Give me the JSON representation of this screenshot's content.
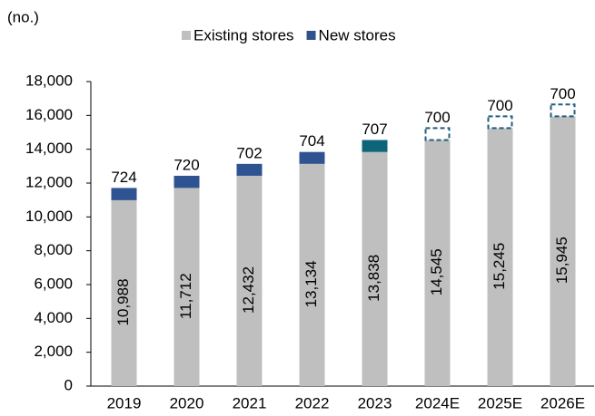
{
  "chart_data": {
    "type": "stacked_bar",
    "y_label": "(no.)",
    "categories": [
      "2019",
      "2020",
      "2021",
      "2022",
      "2023",
      "2024E",
      "2025E",
      "2026E"
    ],
    "series": [
      {
        "name": "Existing stores",
        "color": "#bfbfbf",
        "values": [
          10988,
          11712,
          12432,
          13134,
          13838,
          14545,
          15245,
          15945
        ],
        "value_labels": [
          "10,988",
          "11,712",
          "12,432",
          "13,134",
          "13,838",
          "14,545",
          "15,245",
          "15,945"
        ]
      },
      {
        "name": "New stores",
        "color": "#2f5391",
        "colors": [
          "#2f5391",
          "#2f5391",
          "#2f5391",
          "#2f5391",
          "#0e6478",
          "#1f5f7a",
          "#1f5f7a",
          "#1f5f7a"
        ],
        "dashed": [
          false,
          false,
          false,
          false,
          false,
          true,
          true,
          true
        ],
        "values": [
          724,
          720,
          702,
          704,
          707,
          700,
          700,
          700
        ]
      }
    ],
    "ylim": [
      0,
      18000
    ],
    "yticks": [
      0,
      {
        "value": 2000,
        "label": "2,000"
      },
      {
        "value": 4000,
        "label": "4,000"
      },
      {
        "value": 6000,
        "label": "6,000"
      },
      {
        "value": 8000,
        "label": "8,000"
      },
      {
        "value": 10000,
        "label": "10,000"
      },
      {
        "value": 12000,
        "label": "12,000"
      },
      {
        "value": 14000,
        "label": "14,000"
      },
      {
        "value": 16000,
        "label": "16,000"
      },
      {
        "value": 18000,
        "label": "18,000"
      }
    ]
  }
}
